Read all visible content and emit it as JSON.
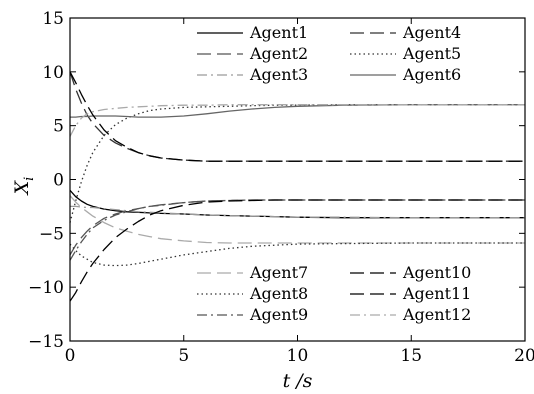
{
  "chart_data": {
    "type": "line",
    "xlabel": "t /s",
    "ylabel": "X_i",
    "xlim": [
      0,
      20
    ],
    "ylim": [
      -15,
      15
    ],
    "xticks": [
      0,
      5,
      10,
      15,
      20
    ],
    "yticks": [
      -15,
      -10,
      -5,
      0,
      5,
      10,
      15
    ],
    "grid": false,
    "legend_groups": [
      {
        "placement": "top-right",
        "columns": 2,
        "entries": [
          "Agent1",
          "Agent4",
          "Agent2",
          "Agent5",
          "Agent3",
          "Agent6"
        ]
      },
      {
        "placement": "bottom-right",
        "columns": 2,
        "entries": [
          "Agent7",
          "Agent10",
          "Agent8",
          "Agent11",
          "Agent9",
          "Agent12"
        ]
      }
    ],
    "x": [
      0,
      0.25,
      0.5,
      0.75,
      1,
      1.5,
      2,
      2.5,
      3,
      3.5,
      4,
      5,
      6,
      7,
      8,
      9,
      10,
      12,
      15,
      20
    ],
    "series": [
      {
        "name": "Agent1",
        "color": "#000000",
        "dash": "solid",
        "values": [
          -1.0,
          -1.6,
          -2.0,
          -2.3,
          -2.5,
          -2.75,
          -2.9,
          -3.0,
          -3.05,
          -3.1,
          -3.15,
          -3.2,
          -3.3,
          -3.35,
          -3.4,
          -3.45,
          -3.5,
          -3.55,
          -3.55,
          -3.55
        ]
      },
      {
        "name": "Agent2",
        "color": "#555555",
        "dash": "long",
        "values": [
          -7.0,
          -6.1,
          -5.4,
          -4.8,
          -4.3,
          -3.6,
          -3.2,
          -2.9,
          -2.7,
          -2.5,
          -2.35,
          -2.15,
          -2.0,
          -1.95,
          -1.9,
          -1.9,
          -1.9,
          -1.9,
          -1.9,
          -1.9
        ]
      },
      {
        "name": "Agent3",
        "color": "#9a9a9a",
        "dash": "dashdot",
        "values": [
          -2.5,
          -2.5,
          -2.55,
          -2.6,
          -2.6,
          -2.7,
          -2.8,
          -2.9,
          -3.0,
          -3.05,
          -3.1,
          -3.2,
          -3.3,
          -3.35,
          -3.4,
          -3.45,
          -3.5,
          -3.5,
          -3.55,
          -3.55
        ]
      },
      {
        "name": "Agent4",
        "color": "#333333",
        "dash": "long",
        "values": [
          10.0,
          8.4,
          7.1,
          6.0,
          5.2,
          4.1,
          3.4,
          2.9,
          2.5,
          2.2,
          2.0,
          1.8,
          1.7,
          1.7,
          1.7,
          1.7,
          1.7,
          1.7,
          1.7,
          1.7
        ]
      },
      {
        "name": "Agent5",
        "color": "#333333",
        "dash": "dotted",
        "values": [
          -4.0,
          -2.0,
          -0.2,
          1.3,
          2.5,
          4.1,
          5.1,
          5.7,
          6.1,
          6.4,
          6.55,
          6.7,
          6.75,
          6.8,
          6.85,
          6.9,
          6.9,
          6.95,
          6.95,
          6.95
        ]
      },
      {
        "name": "Agent6",
        "color": "#666666",
        "dash": "solid",
        "values": [
          5.8,
          5.8,
          5.85,
          5.85,
          5.9,
          5.9,
          5.9,
          5.85,
          5.8,
          5.8,
          5.8,
          5.9,
          6.1,
          6.35,
          6.55,
          6.7,
          6.8,
          6.9,
          6.95,
          6.95
        ]
      },
      {
        "name": "Agent7",
        "color": "#aaaaaa",
        "dash": "long",
        "values": [
          -1.5,
          -2.1,
          -2.6,
          -3.0,
          -3.4,
          -4.0,
          -4.5,
          -4.8,
          -5.1,
          -5.3,
          -5.5,
          -5.7,
          -5.85,
          -5.9,
          -5.9,
          -5.9,
          -5.9,
          -5.9,
          -5.9,
          -5.9
        ]
      },
      {
        "name": "Agent8",
        "color": "#333333",
        "dash": "dotted",
        "values": [
          -6.0,
          -6.6,
          -7.1,
          -7.4,
          -7.7,
          -7.95,
          -8.0,
          -7.95,
          -7.8,
          -7.6,
          -7.4,
          -7.0,
          -6.7,
          -6.4,
          -6.2,
          -6.1,
          -6.0,
          -5.95,
          -5.9,
          -5.9
        ]
      },
      {
        "name": "Agent9",
        "color": "#555555",
        "dash": "dashdot",
        "values": [
          -7.5,
          -6.6,
          -5.8,
          -5.1,
          -4.5,
          -3.8,
          -3.3,
          -3.0,
          -2.7,
          -2.5,
          -2.4,
          -2.15,
          -2.0,
          -1.95,
          -1.9,
          -1.9,
          -1.9,
          -1.9,
          -1.9,
          -1.9
        ]
      },
      {
        "name": "Agent10",
        "color": "#000000",
        "dash": "long",
        "values": [
          10.0,
          9.0,
          7.9,
          6.9,
          6.0,
          4.6,
          3.6,
          3.0,
          2.5,
          2.2,
          2.0,
          1.8,
          1.7,
          1.7,
          1.7,
          1.7,
          1.7,
          1.7,
          1.7,
          1.7
        ]
      },
      {
        "name": "Agent11",
        "color": "#000000",
        "dash": "long",
        "values": [
          -11.3,
          -10.5,
          -9.5,
          -8.6,
          -7.8,
          -6.5,
          -5.4,
          -4.6,
          -3.9,
          -3.3,
          -2.9,
          -2.4,
          -2.1,
          -2.0,
          -1.95,
          -1.9,
          -1.9,
          -1.9,
          -1.9,
          -1.9
        ]
      },
      {
        "name": "Agent12",
        "color": "#aaaaaa",
        "dash": "dashdot",
        "values": [
          4.0,
          5.0,
          5.7,
          6.1,
          6.3,
          6.5,
          6.6,
          6.7,
          6.75,
          6.8,
          6.85,
          6.9,
          6.9,
          6.95,
          6.95,
          6.95,
          6.95,
          6.95,
          6.95,
          6.95
        ]
      }
    ]
  }
}
